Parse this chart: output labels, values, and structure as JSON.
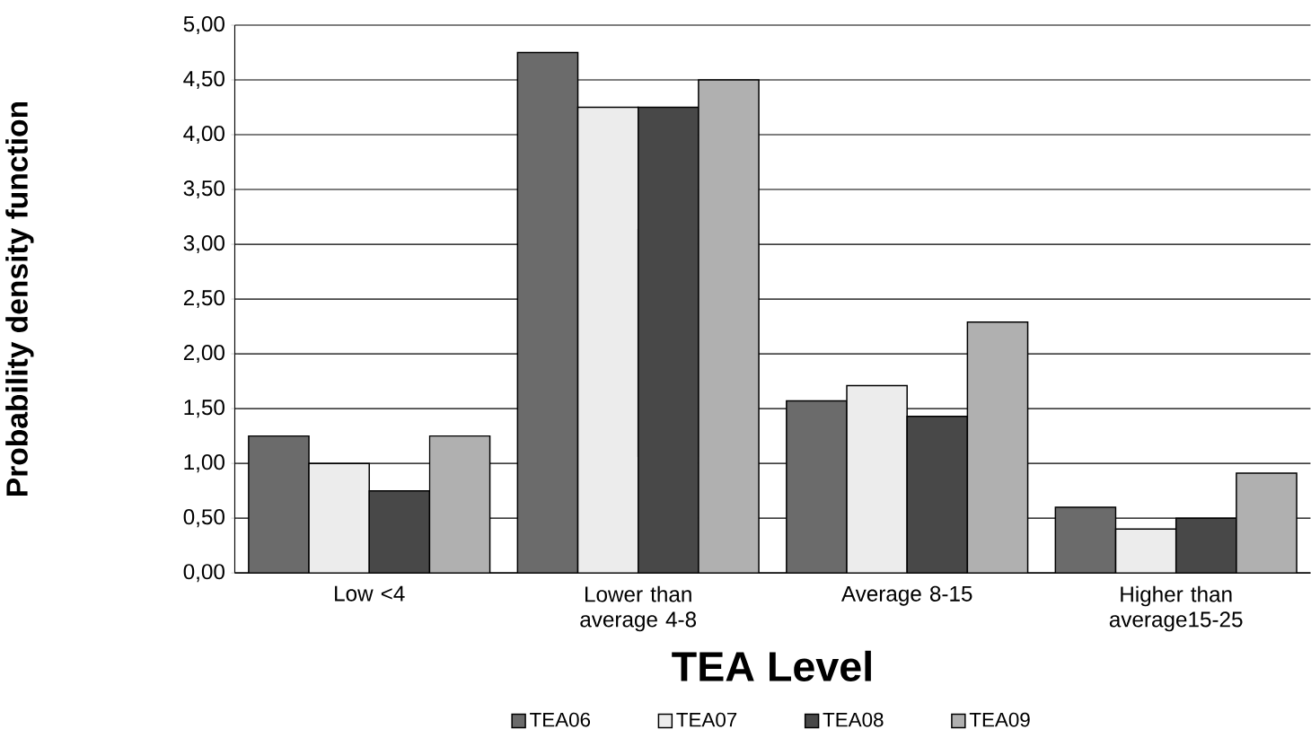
{
  "chart_data": {
    "type": "bar",
    "xlabel": "TEA Level",
    "ylabel": "Probability density function",
    "categories": [
      "Low <4",
      "Lower than average 4-8",
      "Average 8-15",
      "Higher than average15-25"
    ],
    "series": [
      {
        "name": "TEA06",
        "color": "#6b6b6b",
        "values": [
          1.25,
          4.75,
          1.57,
          0.6
        ]
      },
      {
        "name": "TEA07",
        "color": "#ececec",
        "values": [
          1.0,
          4.25,
          1.71,
          0.4
        ]
      },
      {
        "name": "TEA08",
        "color": "#484848",
        "values": [
          0.75,
          4.25,
          1.43,
          0.5
        ]
      },
      {
        "name": "TEA09",
        "color": "#b0b0b0",
        "values": [
          1.25,
          4.5,
          2.29,
          0.91
        ]
      }
    ],
    "ylim": [
      0,
      5
    ],
    "yticks": [
      {
        "value": 0,
        "label": "0,00"
      },
      {
        "value": 0.5,
        "label": "0,50"
      },
      {
        "value": 1,
        "label": "1,00"
      },
      {
        "value": 1.5,
        "label": "1,50"
      },
      {
        "value": 2,
        "label": "2,00"
      },
      {
        "value": 2.5,
        "label": "2,50"
      },
      {
        "value": 3,
        "label": "3,00"
      },
      {
        "value": 3.5,
        "label": "3,50"
      },
      {
        "value": 4,
        "label": "4,00"
      },
      {
        "value": 4.5,
        "label": "4,50"
      },
      {
        "value": 5,
        "label": "5,00"
      }
    ],
    "grid": "y",
    "legend": "bottom"
  }
}
